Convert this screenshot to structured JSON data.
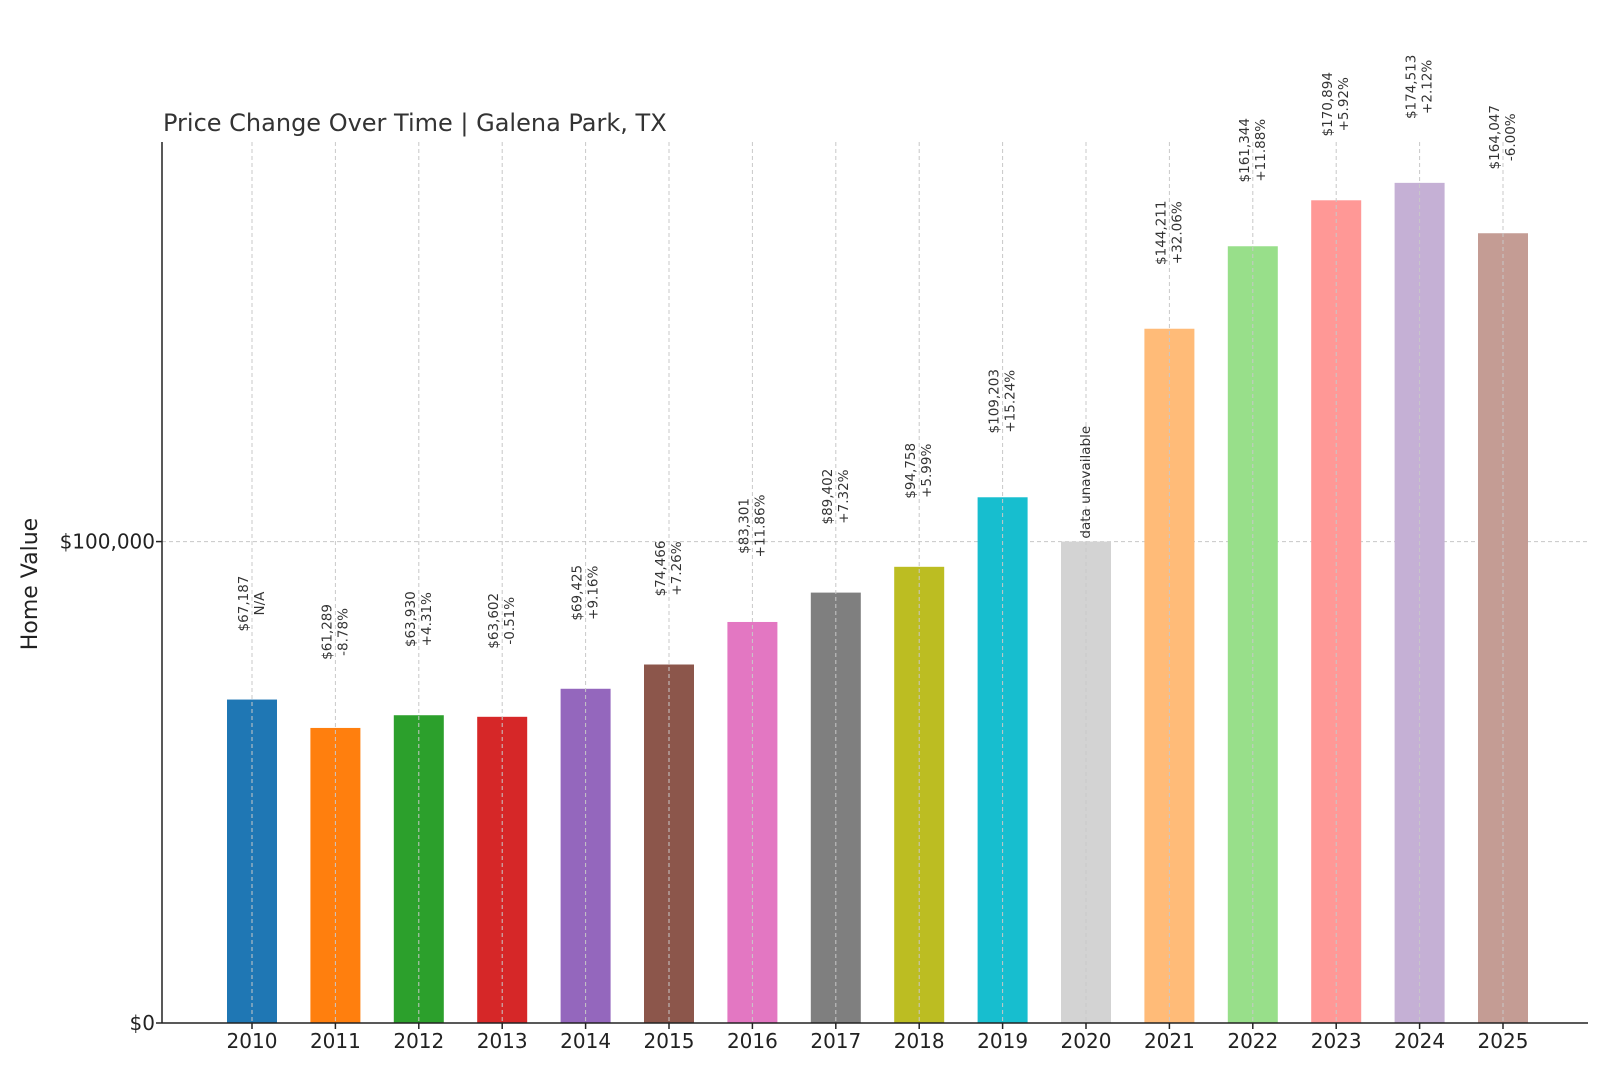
{
  "chart_data": {
    "type": "bar",
    "title": "Price Change Over Time | Galena Park, TX",
    "xlabel": "",
    "ylabel": "Home Value",
    "ylim": [
      0,
      183000
    ],
    "y_ticks": [
      {
        "value": 0,
        "label": "$0"
      },
      {
        "value": 100000,
        "label": "$100,000"
      }
    ],
    "grid": true,
    "categories": [
      "2010",
      "2011",
      "2012",
      "2013",
      "2014",
      "2015",
      "2016",
      "2017",
      "2018",
      "2019",
      "2020",
      "2021",
      "2022",
      "2023",
      "2024",
      "2025"
    ],
    "values": [
      67187,
      61289,
      63930,
      63602,
      69425,
      74466,
      83301,
      89402,
      94758,
      109203,
      100000,
      144211,
      161344,
      170894,
      174513,
      164047
    ],
    "value_labels": [
      "$67,187",
      "$61,289",
      "$63,930",
      "$63,602",
      "$69,425",
      "$74,466",
      "$83,301",
      "$89,402",
      "$94,758",
      "$109,203",
      "",
      "$144,211",
      "$161,344",
      "$170,894",
      "$174,513",
      "$164,047"
    ],
    "change_labels": [
      "N/A",
      "-8.78%",
      "+4.31%",
      "-0.51%",
      "+9.16%",
      "+7.26%",
      "+11.86%",
      "+7.32%",
      "+5.99%",
      "+15.24%",
      "",
      "+32.06%",
      "+11.88%",
      "+5.92%",
      "+2.12%",
      "-6.00%"
    ],
    "unavailable_label": "data unavailable",
    "unavailable_index": 10,
    "colors": [
      "#1f77b4",
      "#ff7f0e",
      "#2ca02c",
      "#d62728",
      "#9467bd",
      "#8c564b",
      "#e377c2",
      "#7f7f7f",
      "#bcbd22",
      "#17becf",
      "#d3d3d3",
      "#ffbb78",
      "#98df8a",
      "#ff9896",
      "#c5b0d5",
      "#c49c94"
    ]
  }
}
